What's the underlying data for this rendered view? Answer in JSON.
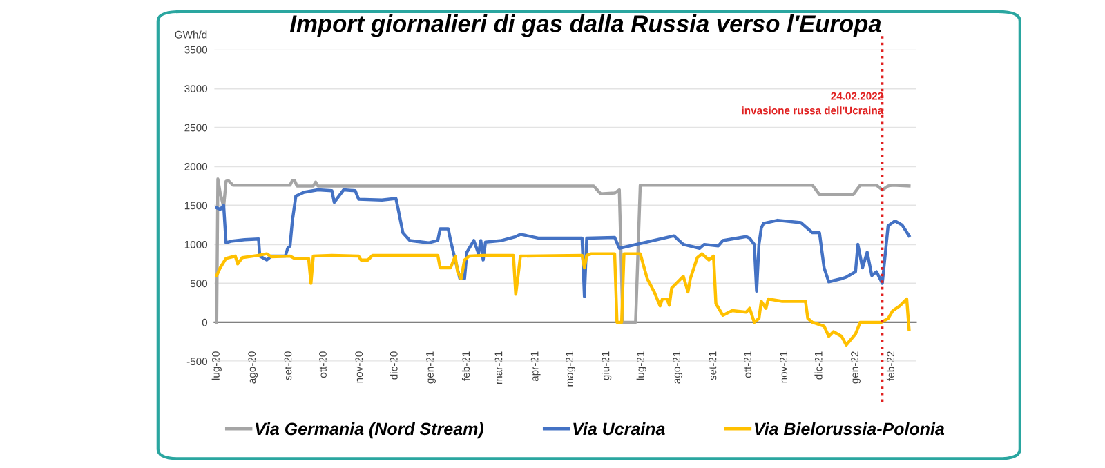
{
  "chart_data": {
    "type": "line",
    "title": "Import giornalieri di gas dalla Russia verso l'Europa",
    "ylabel": "GWh/d",
    "xlim": [
      "2020-06-29",
      "2022-02-22"
    ],
    "ylim": [
      -500,
      3500
    ],
    "yticks": [
      -500,
      0,
      500,
      1000,
      1500,
      2000,
      2500,
      3000,
      3500
    ],
    "xticks": [
      {
        "value": "2020-07-01",
        "label": "lug-20"
      },
      {
        "value": "2020-08-01",
        "label": "ago-20"
      },
      {
        "value": "2020-09-01",
        "label": "set-20"
      },
      {
        "value": "2020-10-01",
        "label": "ott-20"
      },
      {
        "value": "2020-11-01",
        "label": "nov-20"
      },
      {
        "value": "2020-12-01",
        "label": "dic-20"
      },
      {
        "value": "2021-01-01",
        "label": "gen-21"
      },
      {
        "value": "2021-02-01",
        "label": "feb-21"
      },
      {
        "value": "2021-03-01",
        "label": "mar-21"
      },
      {
        "value": "2021-04-01",
        "label": "apr-21"
      },
      {
        "value": "2021-05-01",
        "label": "mag-21"
      },
      {
        "value": "2021-06-01",
        "label": "giu-21"
      },
      {
        "value": "2021-07-01",
        "label": "lug-21"
      },
      {
        "value": "2021-08-01",
        "label": "ago-21"
      },
      {
        "value": "2021-09-01",
        "label": "set-21"
      },
      {
        "value": "2021-10-01",
        "label": "ott-21"
      },
      {
        "value": "2021-11-01",
        "label": "nov-21"
      },
      {
        "value": "2021-12-01",
        "label": "dic-21"
      },
      {
        "value": "2022-01-01",
        "label": "gen-22"
      },
      {
        "value": "2022-02-01",
        "label": "feb-22"
      }
    ],
    "grid": "y",
    "legend": "bottom",
    "marker": "none",
    "line_style": "solid",
    "ref_lines": [
      {
        "axis": "x",
        "value": "2022-01-24",
        "label": "24.02.2022\ninvasione russa dell'Ucraina",
        "color": "#e02020",
        "line_style": "dotted"
      }
    ],
    "series": [
      {
        "name": "Via Germania (Nord Stream)",
        "color": "#a5a5a5",
        "x": [
          "2020-07-01",
          "2020-07-02",
          "2020-07-04",
          "2020-07-07",
          "2020-07-09",
          "2020-07-11",
          "2020-07-15",
          "2020-09-02",
          "2020-09-04",
          "2020-09-06",
          "2020-09-08",
          "2020-09-22",
          "2020-09-24",
          "2020-09-26",
          "2021-05-21",
          "2021-05-27",
          "2021-06-08",
          "2021-06-12",
          "2021-06-15",
          "2021-06-26",
          "2021-06-30",
          "2021-11-25",
          "2021-12-01",
          "2021-12-30",
          "2022-01-05",
          "2022-01-19",
          "2022-01-24",
          "2022-01-29",
          "2022-02-02",
          "2022-02-16"
        ],
        "values": [
          0,
          1840,
          1660,
          1480,
          1810,
          1820,
          1760,
          1760,
          1820,
          1820,
          1750,
          1750,
          1800,
          1750,
          1750,
          1650,
          1660,
          1700,
          0,
          0,
          1760,
          1760,
          1640,
          1640,
          1760,
          1760,
          1700,
          1750,
          1760,
          1750
        ]
      },
      {
        "name": "Via Ucraina",
        "color": "#4472c4",
        "x": [
          "2020-07-01",
          "2020-07-04",
          "2020-07-07",
          "2020-07-09",
          "2020-07-13",
          "2020-07-25",
          "2020-08-06",
          "2020-08-07",
          "2020-08-13",
          "2020-08-17",
          "2020-08-29",
          "2020-08-31",
          "2020-09-02",
          "2020-09-04",
          "2020-09-07",
          "2020-09-14",
          "2020-09-26",
          "2020-10-08",
          "2020-10-10",
          "2020-10-14",
          "2020-10-18",
          "2020-10-28",
          "2020-10-31",
          "2020-11-20",
          "2020-12-02",
          "2020-12-04",
          "2020-12-08",
          "2020-12-14",
          "2020-12-30",
          "2021-01-07",
          "2021-01-09",
          "2021-01-16",
          "2021-01-18",
          "2021-01-22",
          "2021-01-26",
          "2021-01-30",
          "2021-02-01",
          "2021-02-07",
          "2021-02-11",
          "2021-02-13",
          "2021-02-15",
          "2021-02-17",
          "2021-03-03",
          "2021-03-15",
          "2021-03-19",
          "2021-04-04",
          "2021-05-11",
          "2021-05-13",
          "2021-05-15",
          "2021-06-08",
          "2021-06-12",
          "2021-07-29",
          "2021-08-06",
          "2021-08-20",
          "2021-08-24",
          "2021-09-05",
          "2021-09-09",
          "2021-09-29",
          "2021-10-02",
          "2021-10-06",
          "2021-10-08",
          "2021-10-10",
          "2021-10-12",
          "2021-10-14",
          "2021-10-26",
          "2021-11-15",
          "2021-11-25",
          "2021-12-01",
          "2021-12-05",
          "2021-12-09",
          "2021-12-20",
          "2021-12-24",
          "2022-01-01",
          "2022-01-03",
          "2022-01-07",
          "2022-01-11",
          "2022-01-15",
          "2022-01-19",
          "2022-01-24",
          "2022-01-29",
          "2022-02-04",
          "2022-02-10",
          "2022-02-16"
        ],
        "values": [
          1470,
          1450,
          1500,
          1020,
          1040,
          1060,
          1070,
          850,
          800,
          850,
          850,
          950,
          980,
          1300,
          1620,
          1670,
          1700,
          1690,
          1540,
          1620,
          1700,
          1690,
          1580,
          1570,
          1590,
          1450,
          1150,
          1050,
          1020,
          1050,
          1200,
          1200,
          1050,
          800,
          560,
          560,
          900,
          1050,
          880,
          1050,
          800,
          1030,
          1050,
          1100,
          1130,
          1080,
          1080,
          330,
          1080,
          1090,
          950,
          1110,
          1000,
          950,
          1000,
          980,
          1050,
          1100,
          1080,
          1000,
          400,
          1000,
          1210,
          1270,
          1310,
          1280,
          1150,
          1150,
          700,
          520,
          560,
          580,
          650,
          1000,
          700,
          900,
          600,
          650,
          500,
          1240,
          1300,
          1250,
          1110
        ]
      },
      {
        "name": "Via Bielorussia-Polonia",
        "color": "#ffc000",
        "x": [
          "2020-07-01",
          "2020-07-04",
          "2020-07-09",
          "2020-07-17",
          "2020-07-19",
          "2020-07-23",
          "2020-08-06",
          "2020-08-13",
          "2020-08-17",
          "2020-09-02",
          "2020-09-06",
          "2020-09-18",
          "2020-09-20",
          "2020-09-22",
          "2020-10-08",
          "2020-10-31",
          "2020-11-02",
          "2020-11-08",
          "2020-11-12",
          "2021-01-07",
          "2021-01-09",
          "2021-01-18",
          "2021-01-22",
          "2021-01-24",
          "2021-01-27",
          "2021-01-30",
          "2021-02-03",
          "2021-02-15",
          "2021-03-13",
          "2021-03-15",
          "2021-03-17",
          "2021-03-19",
          "2021-05-11",
          "2021-05-13",
          "2021-05-15",
          "2021-05-19",
          "2021-06-08",
          "2021-06-10",
          "2021-06-14",
          "2021-06-16",
          "2021-06-30",
          "2021-07-06",
          "2021-07-12",
          "2021-07-17",
          "2021-07-19",
          "2021-07-23",
          "2021-07-25",
          "2021-07-27",
          "2021-07-31",
          "2021-08-06",
          "2021-08-10",
          "2021-08-12",
          "2021-08-18",
          "2021-08-22",
          "2021-08-28",
          "2021-09-01",
          "2021-09-03",
          "2021-09-09",
          "2021-09-17",
          "2021-09-29",
          "2021-10-02",
          "2021-10-06",
          "2021-10-10",
          "2021-10-12",
          "2021-10-16",
          "2021-10-18",
          "2021-10-30",
          "2021-11-19",
          "2021-11-21",
          "2021-11-25",
          "2021-12-05",
          "2021-12-09",
          "2021-12-13",
          "2021-12-20",
          "2021-12-24",
          "2022-01-01",
          "2022-01-05",
          "2022-01-17",
          "2022-01-23",
          "2022-01-29",
          "2022-02-02",
          "2022-02-08",
          "2022-02-14",
          "2022-02-16"
        ],
        "values": [
          600,
          700,
          820,
          850,
          750,
          830,
          860,
          880,
          840,
          850,
          820,
          820,
          500,
          850,
          860,
          850,
          800,
          800,
          860,
          860,
          700,
          700,
          850,
          650,
          560,
          800,
          850,
          860,
          860,
          360,
          600,
          850,
          860,
          700,
          860,
          880,
          880,
          0,
          0,
          880,
          880,
          560,
          390,
          210,
          300,
          300,
          220,
          440,
          500,
          590,
          390,
          560,
          830,
          880,
          800,
          850,
          240,
          90,
          150,
          130,
          180,
          0,
          50,
          270,
          180,
          300,
          270,
          270,
          50,
          0,
          -50,
          -180,
          -120,
          -180,
          -290,
          -150,
          0,
          0,
          0,
          50,
          150,
          210,
          300,
          -90
        ]
      }
    ]
  }
}
